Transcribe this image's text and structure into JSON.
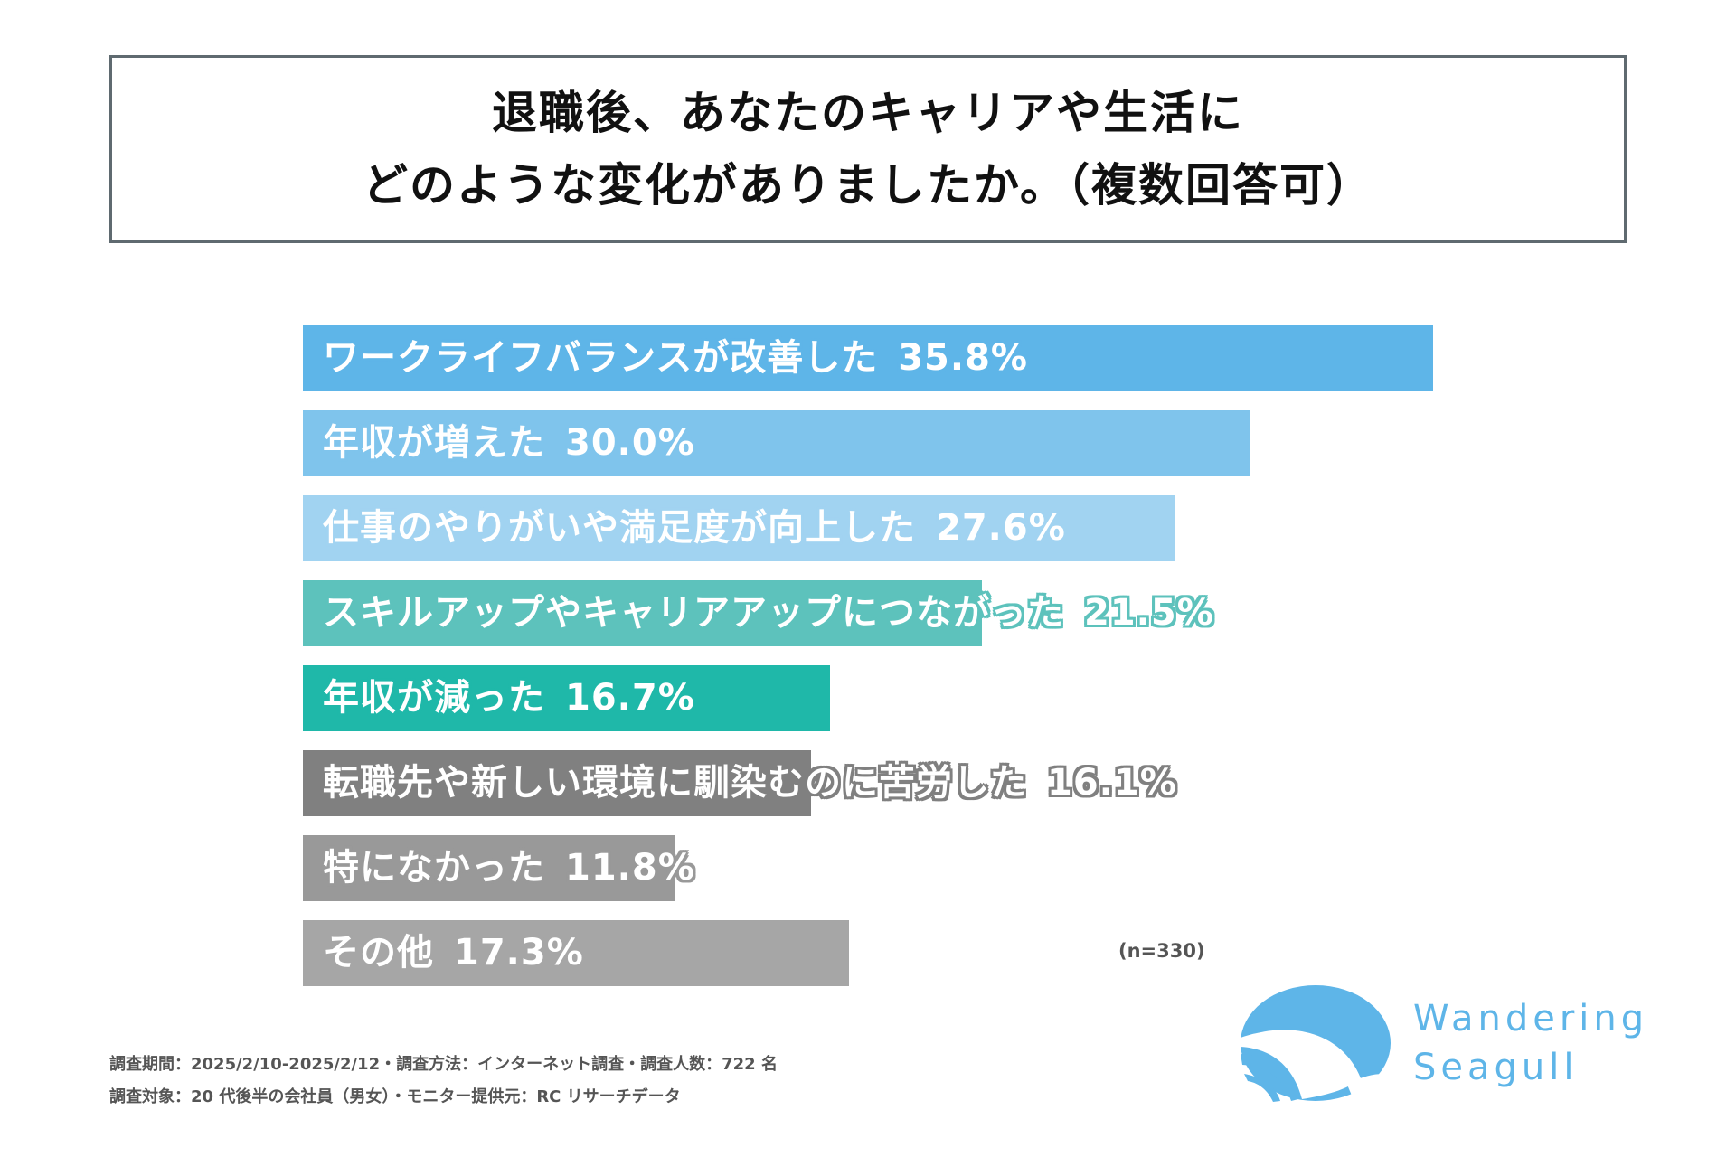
{
  "title": {
    "line1": "退職後、あなたのキャリアや生活に",
    "line2": "どのような変化がありましたか。（複数回答可）"
  },
  "chart_data": {
    "type": "bar",
    "orientation": "horizontal",
    "title": "退職後、あなたのキャリアや生活にどのような変化がありましたか。（複数回答可）",
    "categories": [
      "ワークライフバランスが改善した",
      "年収が増えた",
      "仕事のやりがいや満足度が向上した",
      "スキルアップやキャリアアップにつながった",
      "年収が減った",
      "転職先や新しい環境に馴染むのに苦労した",
      "特になかった",
      "その他"
    ],
    "values": [
      35.8,
      30.0,
      27.6,
      21.5,
      16.7,
      16.1,
      11.8,
      17.3
    ],
    "value_labels": [
      "35.8%",
      "30.0%",
      "27.6%",
      "21.5%",
      "16.7%",
      "16.1%",
      "11.8%",
      "17.3%"
    ],
    "colors": [
      "#5eb5e8",
      "#7fc4ec",
      "#a1d3f1",
      "#5dc2bc",
      "#1fb8a9",
      "#808080",
      "#999999",
      "#a6a6a6"
    ],
    "unit": "%",
    "xlim": [
      0,
      35.8
    ],
    "grid": false,
    "legend": "none",
    "sample_note": "(n=330)"
  },
  "footer": {
    "line1": "調査期間：2025/2/10-2025/2/12・調査方法：インターネット調査・調査人数：722 名",
    "line2": "調査対象：20 代後半の会社員（男女）・モニター提供元：RC リサーチデータ"
  },
  "logo": {
    "line1": "Wandering",
    "line2": "Seagull",
    "color": "#5eb5e8"
  }
}
